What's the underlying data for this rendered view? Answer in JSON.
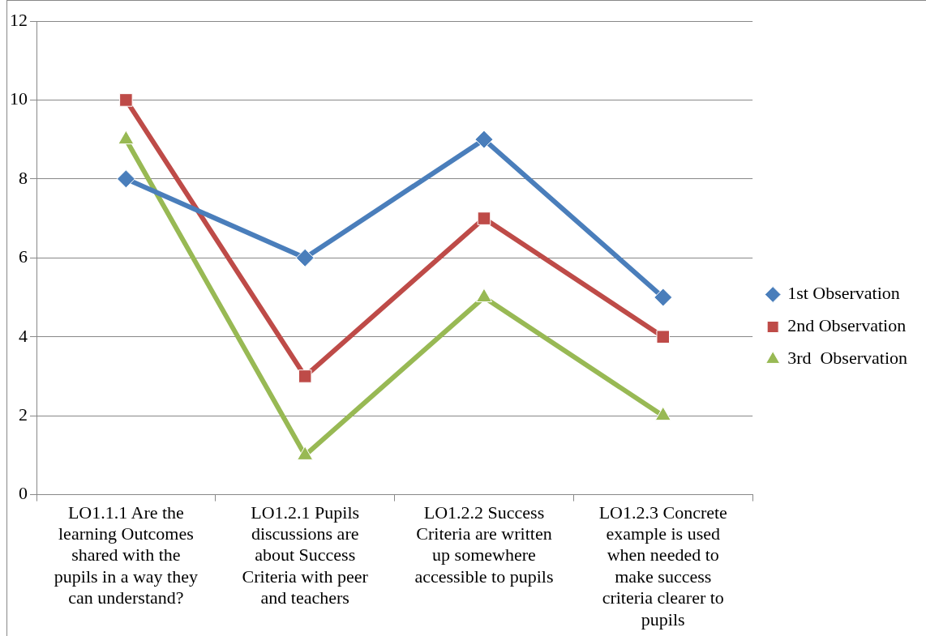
{
  "chart_data": {
    "type": "line",
    "categories": [
      "LO1.1.1 Are the learning Outcomes shared with the pupils in a way they can understand?",
      "LO1.2.1 Pupils discussions are about Success Criteria with peer and teachers",
      "LO1.2.2 Success Criteria are written up somewhere accessible to pupils",
      "LO1.2.3 Concrete example is used when needed to make success criteria clearer to pupils"
    ],
    "series": [
      {
        "name": "1st Observation",
        "color": "#4a7ebb",
        "marker": "diamond",
        "values": [
          8,
          6,
          9,
          5
        ]
      },
      {
        "name": "2nd Observation",
        "color": "#be4b48",
        "marker": "square",
        "values": [
          10,
          3,
          7,
          4
        ]
      },
      {
        "name": "3rd  Observation",
        "color": "#98b954",
        "marker": "triangle",
        "values": [
          9,
          1,
          5,
          2
        ]
      }
    ],
    "ylim": [
      0,
      12
    ],
    "yticks": [
      0,
      2,
      4,
      6,
      8,
      10,
      12
    ],
    "grid": "y",
    "legend": "right",
    "line_style": "solid"
  }
}
